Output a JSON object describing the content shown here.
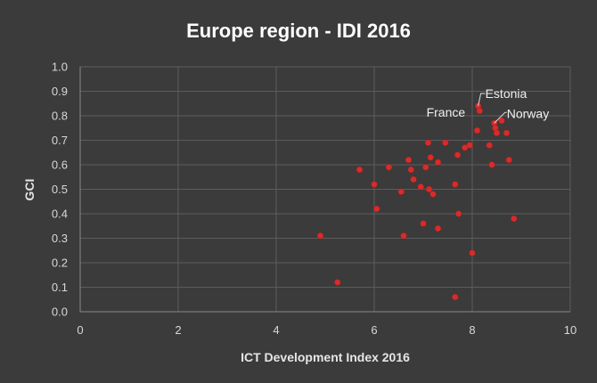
{
  "chart_data": {
    "type": "scatter",
    "title": "Europe region - IDI 2016",
    "xlabel": "ICT Development Index 2016",
    "ylabel": "GCI",
    "xlim": [
      0,
      10
    ],
    "ylim": [
      0.0,
      1.0
    ],
    "x_ticks": [
      "0",
      "2",
      "4",
      "6",
      "8",
      "10"
    ],
    "y_ticks": [
      "0.0",
      "0.1",
      "0.2",
      "0.3",
      "0.4",
      "0.5",
      "0.6",
      "0.7",
      "0.8",
      "0.9",
      "1.0"
    ],
    "grid": true,
    "series_color": "#d62c2c",
    "points": [
      {
        "x": 4.9,
        "y": 0.31
      },
      {
        "x": 5.25,
        "y": 0.12
      },
      {
        "x": 5.7,
        "y": 0.58
      },
      {
        "x": 6.0,
        "y": 0.52
      },
      {
        "x": 6.05,
        "y": 0.42
      },
      {
        "x": 6.3,
        "y": 0.59
      },
      {
        "x": 6.55,
        "y": 0.49
      },
      {
        "x": 6.6,
        "y": 0.31
      },
      {
        "x": 6.7,
        "y": 0.62
      },
      {
        "x": 6.75,
        "y": 0.58
      },
      {
        "x": 6.8,
        "y": 0.54
      },
      {
        "x": 6.95,
        "y": 0.51
      },
      {
        "x": 7.0,
        "y": 0.36
      },
      {
        "x": 7.05,
        "y": 0.59
      },
      {
        "x": 7.1,
        "y": 0.69
      },
      {
        "x": 7.12,
        "y": 0.5
      },
      {
        "x": 7.15,
        "y": 0.63
      },
      {
        "x": 7.2,
        "y": 0.48
      },
      {
        "x": 7.3,
        "y": 0.34
      },
      {
        "x": 7.3,
        "y": 0.61
      },
      {
        "x": 7.45,
        "y": 0.69
      },
      {
        "x": 7.65,
        "y": 0.52
      },
      {
        "x": 7.65,
        "y": 0.06
      },
      {
        "x": 7.7,
        "y": 0.64
      },
      {
        "x": 7.72,
        "y": 0.4
      },
      {
        "x": 7.85,
        "y": 0.67
      },
      {
        "x": 7.95,
        "y": 0.68
      },
      {
        "x": 8.0,
        "y": 0.24
      },
      {
        "x": 8.1,
        "y": 0.74
      },
      {
        "x": 8.12,
        "y": 0.84
      },
      {
        "x": 8.15,
        "y": 0.82
      },
      {
        "x": 8.35,
        "y": 0.68
      },
      {
        "x": 8.4,
        "y": 0.6
      },
      {
        "x": 8.45,
        "y": 0.77
      },
      {
        "x": 8.47,
        "y": 0.75
      },
      {
        "x": 8.5,
        "y": 0.73
      },
      {
        "x": 8.6,
        "y": 0.78
      },
      {
        "x": 8.7,
        "y": 0.73
      },
      {
        "x": 8.75,
        "y": 0.62
      },
      {
        "x": 8.85,
        "y": 0.38
      }
    ],
    "annotations": [
      {
        "label": "France",
        "x": 8.12,
        "y": 0.84
      },
      {
        "label": "Estonia",
        "x": 8.12,
        "y": 0.84
      },
      {
        "label": "Norway",
        "x": 8.45,
        "y": 0.77
      }
    ]
  }
}
